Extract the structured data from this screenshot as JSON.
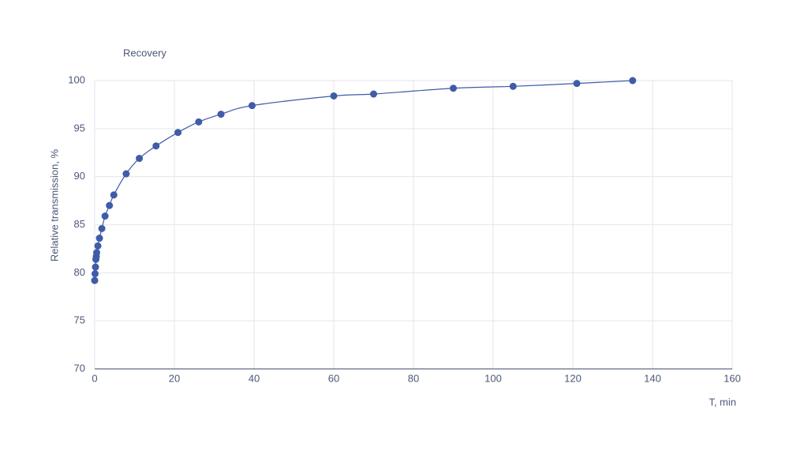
{
  "chart_data": {
    "type": "line",
    "title": "Recovery",
    "x_label": "T, min",
    "y_label": "Relative transmission, %",
    "x": [
      0,
      0.1,
      0.2,
      0.3,
      0.4,
      0.5,
      0.8,
      1.2,
      1.8,
      2.6,
      3.7,
      4.8,
      7.9,
      11.2,
      15.4,
      20.9,
      26.1,
      31.7,
      39.5,
      60,
      70,
      90,
      105,
      121,
      135
    ],
    "series": [
      {
        "name": "Recovery",
        "color": "#3f5ba9",
        "values": [
          79.2,
          79.9,
          80.6,
          81.4,
          81.7,
          82.1,
          82.8,
          83.6,
          84.6,
          85.9,
          87.0,
          88.1,
          90.3,
          91.9,
          93.2,
          94.6,
          95.7,
          96.5,
          97.4,
          98.4,
          98.6,
          99.2,
          99.4,
          99.7,
          100
        ]
      }
    ],
    "xlim": [
      0,
      160
    ],
    "xticks": [
      0,
      20,
      40,
      60,
      80,
      100,
      120,
      140,
      160
    ],
    "ylim": [
      70,
      100
    ],
    "yticks": [
      70,
      75,
      80,
      85,
      90,
      95,
      100
    ],
    "grid": true,
    "smooth": true
  }
}
